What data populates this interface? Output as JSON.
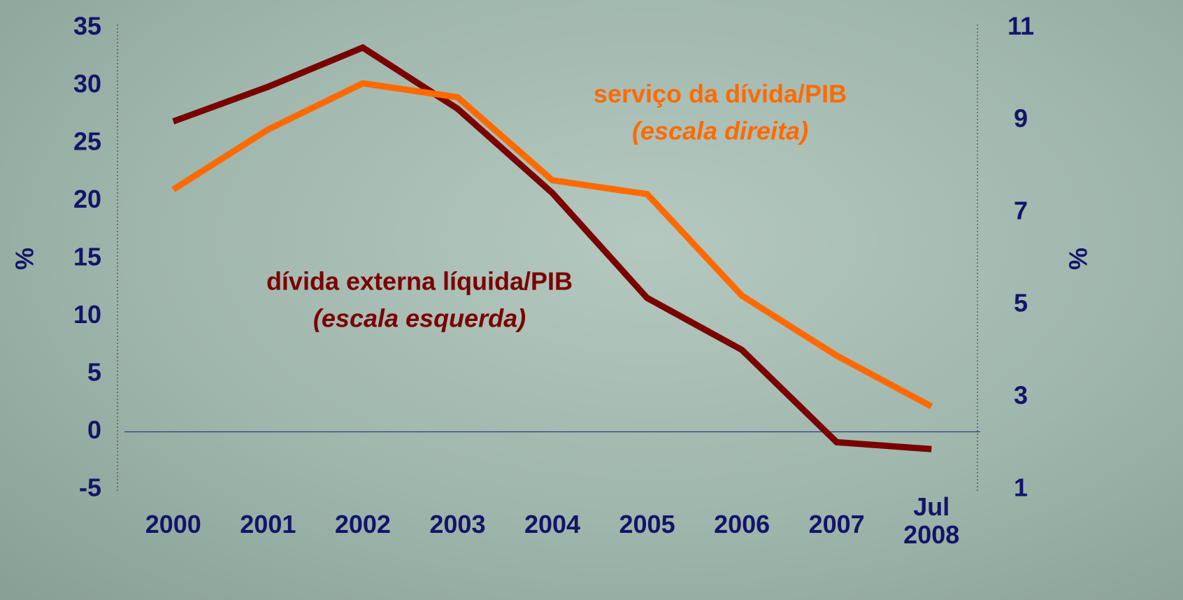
{
  "chart_data": {
    "type": "line",
    "categories": [
      "2000",
      "2001",
      "2002",
      "2003",
      "2004",
      "2005",
      "2006",
      "2007",
      "Jul 2008"
    ],
    "series": [
      {
        "name": "dívida externa líquida/PIB",
        "color": "#7a0000",
        "values": [
          26.9,
          29.9,
          33.3,
          28.0,
          20.7,
          11.6,
          7.1,
          -0.9,
          -1.5
        ]
      },
      {
        "name": "serviço da dívida/PIB",
        "color": "#ff6a00",
        "axis": "y2",
        "values": [
          7.5,
          8.8,
          9.8,
          9.5,
          7.7,
          7.4,
          5.2,
          3.9,
          2.8
        ]
      }
    ],
    "ylim": [
      -5,
      35
    ],
    "yticks": [
      -5,
      0,
      5,
      10,
      15,
      20,
      25,
      30,
      35
    ],
    "y2lim": [
      1,
      11
    ],
    "y2ticks": [
      1,
      3,
      5,
      7,
      9,
      11
    ],
    "ylabel": "%",
    "y2label": "%",
    "annotations": [
      {
        "text": "serviço da dívida/PIB",
        "series": 1
      },
      {
        "text": "(escala direita)",
        "series": 1
      },
      {
        "text": "dívida externa líquida/PIB",
        "series": 0
      },
      {
        "text": "(escala esquerda)",
        "series": 0
      }
    ]
  }
}
